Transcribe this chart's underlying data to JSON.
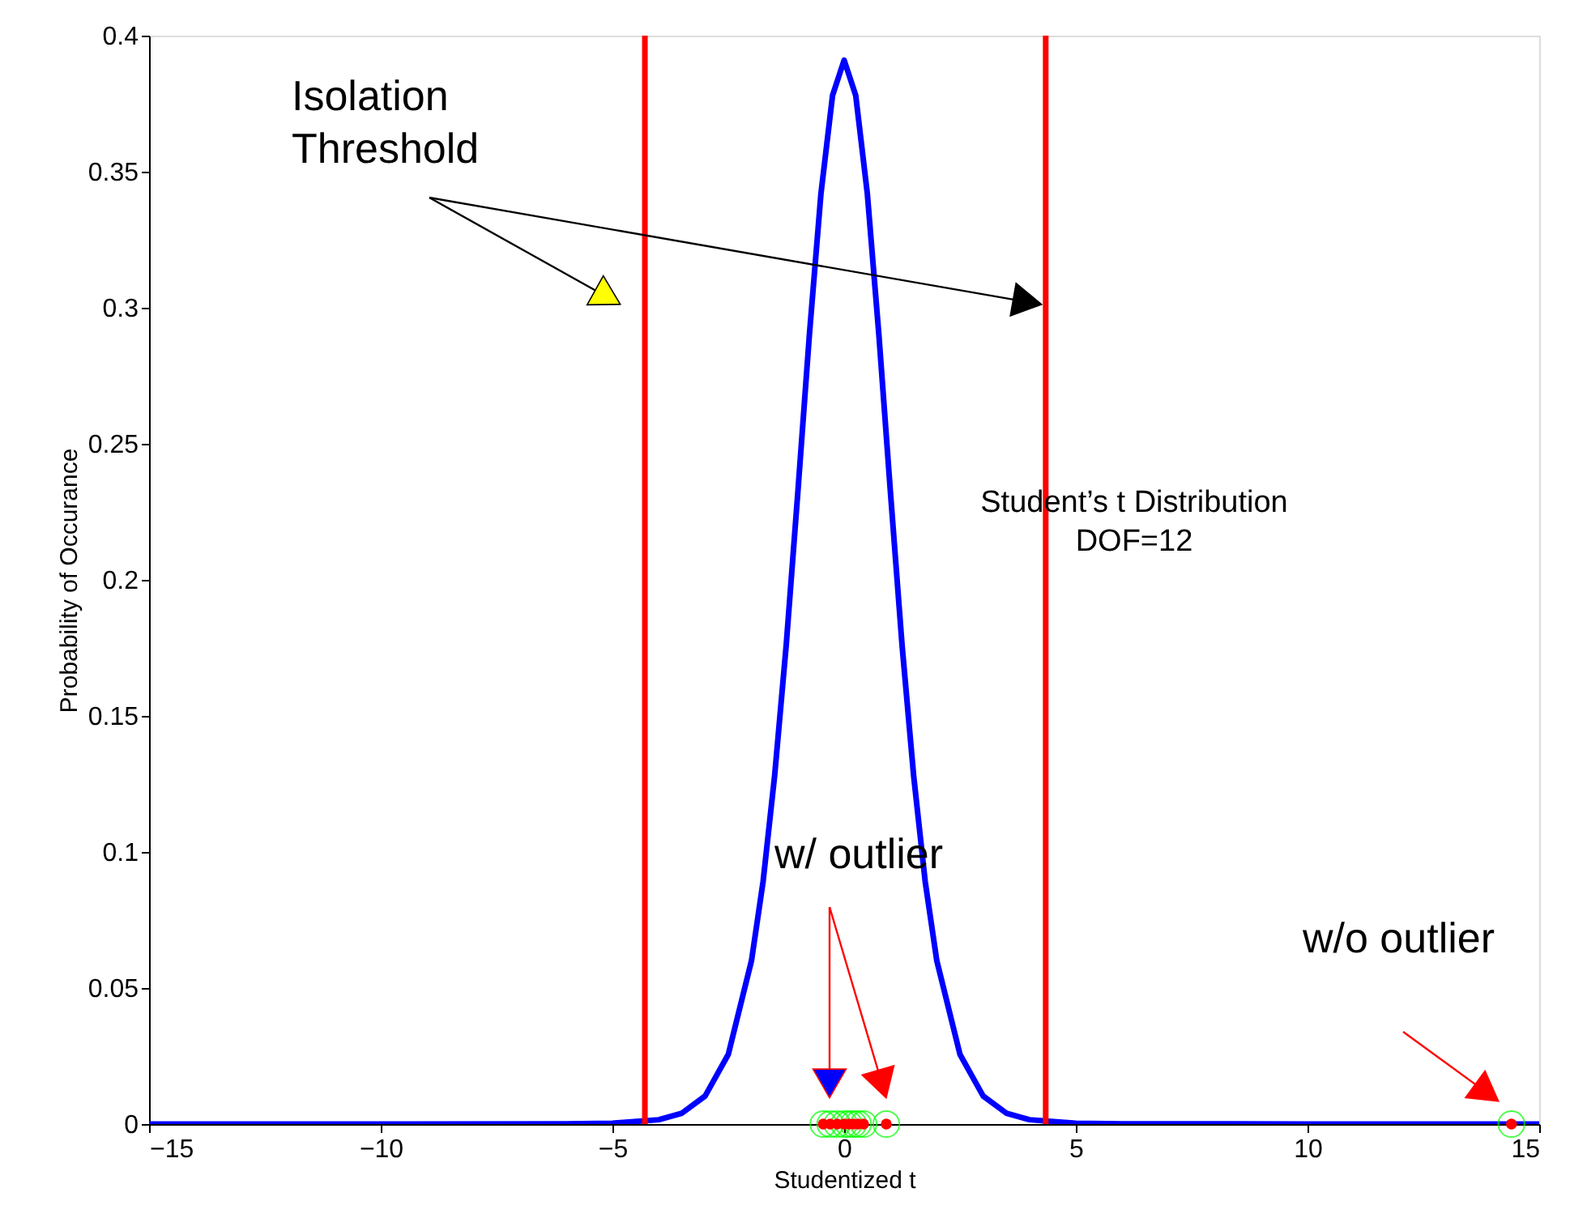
{
  "chart_data": {
    "type": "line",
    "xlabel": "Studentized t",
    "ylabel": "Probability of Occurance",
    "xlim": [
      -15,
      15
    ],
    "xticks": [
      -15,
      -10,
      -5,
      0,
      5,
      10,
      15
    ],
    "ylim": [
      0,
      0.4
    ],
    "yticks": [
      0,
      0.05,
      0.1,
      0.15,
      0.2,
      0.25,
      0.3,
      0.35,
      0.4
    ],
    "grid": false,
    "series": [
      {
        "color": "#0000ff",
        "line_style": "solid",
        "x": [
          -15,
          -10,
          -6,
          -5,
          -4,
          -3.5,
          -3,
          -2.5,
          -2,
          -1.75,
          -1.5,
          -1.25,
          -1,
          -0.75,
          -0.5,
          -0.25,
          0,
          0.25,
          0.5,
          0.75,
          1,
          1.25,
          1.5,
          1.75,
          2,
          2.5,
          3,
          3.5,
          4,
          5,
          6,
          10,
          15
        ],
        "values": [
          0,
          0,
          0.0001,
          0.0003,
          0.0016,
          0.004,
          0.0103,
          0.0256,
          0.06,
          0.089,
          0.128,
          0.176,
          0.232,
          0.29,
          0.342,
          0.378,
          0.391,
          0.378,
          0.342,
          0.29,
          0.232,
          0.176,
          0.128,
          0.089,
          0.06,
          0.0256,
          0.0103,
          0.004,
          0.0016,
          0.0003,
          0.0001,
          0,
          0
        ]
      },
      {
        "type": "scatter",
        "color": "#00ff00",
        "marker": "circle",
        "x": [
          -0.45,
          -0.3,
          -0.15,
          0,
          0.1,
          0.2,
          0.3,
          0.42,
          0.91,
          14.4
        ],
        "values": [
          0,
          0,
          0,
          0,
          0,
          0,
          0,
          0,
          0,
          0
        ]
      },
      {
        "type": "scatter",
        "color": "#ff0000",
        "marker": "circle",
        "x": [
          -0.45,
          -0.3,
          -0.15,
          0,
          0.1,
          0.2,
          0.3,
          0.42,
          0.91,
          14.4
        ],
        "values": [
          0,
          0,
          0,
          0,
          0,
          0,
          0,
          0,
          0,
          0
        ]
      }
    ],
    "ref_lines": [
      {
        "axis": "x",
        "value": -4.3,
        "color": "#ff0000"
      },
      {
        "axis": "x",
        "value": 4.35,
        "color": "#ff0000"
      }
    ],
    "annotations": [
      "Isolation\nThreshold",
      "Student’s t Distribution\nDOF=12",
      "w/ outlier",
      "w/o outlier"
    ]
  }
}
